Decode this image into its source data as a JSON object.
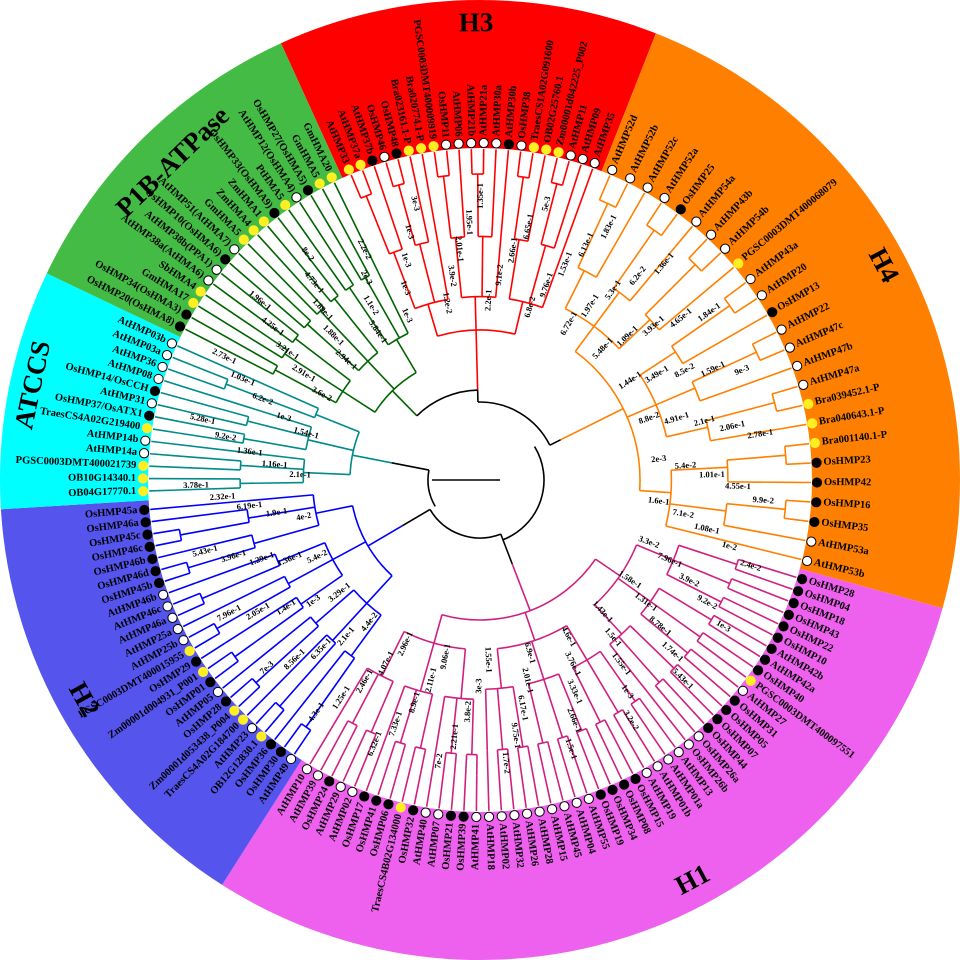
{
  "groups": [
    {
      "id": "H3",
      "label": "H3",
      "bg": "#ff0000",
      "line": "#ff0000",
      "start": -24.5,
      "end": 21.5,
      "labelAngle": -0.5
    },
    {
      "id": "H4",
      "label": "H4",
      "bg": "#ff8000",
      "line": "#ff8000",
      "start": 21.5,
      "end": 105.5,
      "labelAngle": 62
    },
    {
      "id": "H1",
      "label": "H1",
      "bg": "#ee60ee",
      "line": "#d0207f",
      "start": 105.5,
      "end": 212.5,
      "labelAngle": 152
    },
    {
      "id": "H2",
      "label": "H2",
      "bg": "#5555ee",
      "line": "#0000ff",
      "start": 212.5,
      "end": 266.5,
      "labelAngle": 241
    },
    {
      "id": "ATCCS",
      "label": "ATCCS",
      "bg": "#00ffff",
      "line": "#008b8b",
      "start": 266.5,
      "end": 295.5,
      "labelAngle": 282
    },
    {
      "id": "P1B",
      "label": "P1B-ATPase",
      "bg": "#44bb44",
      "line": "#006400",
      "start": 295.5,
      "end": 335.5,
      "labelAngle": 316
    }
  ],
  "leaves": [
    {
      "name": "AtHMP33",
      "marker": "yellow",
      "group": "H3"
    },
    {
      "name": "AtHMP37a",
      "marker": "yellow",
      "group": "H3"
    },
    {
      "name": "AtHMP37b",
      "marker": "black",
      "group": "H3"
    },
    {
      "name": "OsHMP46",
      "marker": "white",
      "group": "H3"
    },
    {
      "name": "OsHMP48",
      "marker": "black",
      "group": "H3"
    },
    {
      "name": "Bra023161.1-P",
      "marker": "yellow",
      "group": "H3"
    },
    {
      "name": "Bra020774.1-P",
      "marker": "yellow",
      "group": "H3"
    },
    {
      "name": "PGSC0003DMT400009919",
      "marker": "yellow",
      "group": "H3"
    },
    {
      "name": "OsHMP11",
      "marker": "white",
      "group": "H3"
    },
    {
      "name": "AtHMP06",
      "marker": "white",
      "group": "H3"
    },
    {
      "name": "AtHMP21b",
      "marker": "white",
      "group": "H3"
    },
    {
      "name": "AtHMP21a",
      "marker": "white",
      "group": "H3"
    },
    {
      "name": "AtHMP30a",
      "marker": "white",
      "group": "H3"
    },
    {
      "name": "AtHMP30b",
      "marker": "black",
      "group": "H3"
    },
    {
      "name": "OsHMP38",
      "marker": "white",
      "group": "H3"
    },
    {
      "name": "TraesCS1A02G091600",
      "marker": "yellow",
      "group": "H3"
    },
    {
      "name": "OB02G25760.1",
      "marker": "yellow",
      "group": "H3"
    },
    {
      "name": "Zm00001d042225_P002",
      "marker": "yellow",
      "group": "H3"
    },
    {
      "name": "AtHMP11",
      "marker": "white",
      "group": "H3"
    },
    {
      "name": "AtHMP09",
      "marker": "white",
      "group": "H3"
    },
    {
      "name": "AtHMP35",
      "marker": "white",
      "group": "H3"
    },
    {
      "name": "AtHMP52d",
      "marker": "white",
      "group": "H4"
    },
    {
      "name": "AtHMP52b",
      "marker": "white",
      "group": "H4"
    },
    {
      "name": "AtHMP52c",
      "marker": "white",
      "group": "H4"
    },
    {
      "name": "AtHMP52a",
      "marker": "white",
      "group": "H4"
    },
    {
      "name": "OsHMP25",
      "marker": "black",
      "group": "H4"
    },
    {
      "name": "AtHMP54a",
      "marker": "white",
      "group": "H4"
    },
    {
      "name": "AtHMP43b",
      "marker": "white",
      "group": "H4"
    },
    {
      "name": "AtHMP54b",
      "marker": "white",
      "group": "H4"
    },
    {
      "name": "PGSC0003DMT400068079",
      "marker": "yellow",
      "group": "H4"
    },
    {
      "name": "AtHMP43a",
      "marker": "white",
      "group": "H4"
    },
    {
      "name": "AtHMP20",
      "marker": "white",
      "group": "H4"
    },
    {
      "name": "OsHMP13",
      "marker": "black",
      "group": "H4"
    },
    {
      "name": "AtHMP22",
      "marker": "white",
      "group": "H4"
    },
    {
      "name": "AtHMP47c",
      "marker": "white",
      "group": "H4"
    },
    {
      "name": "AtHMP47b",
      "marker": "white",
      "group": "H4"
    },
    {
      "name": "AtHMP47a",
      "marker": "white",
      "group": "H4"
    },
    {
      "name": "Bra039452.1-P",
      "marker": "yellow",
      "group": "H4"
    },
    {
      "name": "Bra040643.1-P",
      "marker": "yellow",
      "group": "H4"
    },
    {
      "name": "Bra001140.1-P",
      "marker": "yellow",
      "group": "H4"
    },
    {
      "name": "OsHMP23",
      "marker": "black",
      "group": "H4"
    },
    {
      "name": "OsHMP42",
      "marker": "black",
      "group": "H4"
    },
    {
      "name": "OsHMP16",
      "marker": "black",
      "group": "H4"
    },
    {
      "name": "OsHMP35",
      "marker": "black",
      "group": "H4"
    },
    {
      "name": "AtHMP53a",
      "marker": "white",
      "group": "H4"
    },
    {
      "name": "AtHMP53b",
      "marker": "white",
      "group": "H4"
    },
    {
      "name": "OsHMP28",
      "marker": "black",
      "group": "H1"
    },
    {
      "name": "OsHMP04",
      "marker": "black",
      "group": "H1"
    },
    {
      "name": "OsHMP18",
      "marker": "black",
      "group": "H1"
    },
    {
      "name": "OsHMP43",
      "marker": "black",
      "group": "H1"
    },
    {
      "name": "OsHMP22",
      "marker": "black",
      "group": "H1"
    },
    {
      "name": "OsHMP10",
      "marker": "black",
      "group": "H1"
    },
    {
      "name": "AtHMP42b",
      "marker": "black",
      "group": "H1"
    },
    {
      "name": "AtHMP42a",
      "marker": "black",
      "group": "H1"
    },
    {
      "name": "OsHMP40",
      "marker": "black",
      "group": "H1"
    },
    {
      "name": "PGSC0003DMT400097551",
      "marker": "yellow",
      "group": "H1"
    },
    {
      "name": "AtHMP27",
      "marker": "white",
      "group": "H1"
    },
    {
      "name": "OsHMP31",
      "marker": "black",
      "group": "H1"
    },
    {
      "name": "OsHMP05",
      "marker": "black",
      "group": "H1"
    },
    {
      "name": "OsHMP07",
      "marker": "black",
      "group": "H1"
    },
    {
      "name": "OsHMP44",
      "marker": "black",
      "group": "H1"
    },
    {
      "name": "OsHMP26a",
      "marker": "white",
      "group": "H1"
    },
    {
      "name": "OsHMP26b",
      "marker": "white",
      "group": "H1"
    },
    {
      "name": "AtHMP13",
      "marker": "white",
      "group": "H1"
    },
    {
      "name": "AtHMP01a",
      "marker": "white",
      "group": "H1"
    },
    {
      "name": "AtHMP01b",
      "marker": "white",
      "group": "H1"
    },
    {
      "name": "AtHMP19",
      "marker": "white",
      "group": "H1"
    },
    {
      "name": "OsHMP15",
      "marker": "black",
      "group": "H1"
    },
    {
      "name": "OsHMP08",
      "marker": "black",
      "group": "H1"
    },
    {
      "name": "OsHMP34",
      "marker": "black",
      "group": "H1"
    },
    {
      "name": "OsHMP19",
      "marker": "black",
      "group": "H1"
    },
    {
      "name": "AtHMP55",
      "marker": "white",
      "group": "H1"
    },
    {
      "name": "AtHMP04",
      "marker": "white",
      "group": "H1"
    },
    {
      "name": "AtHMP45",
      "marker": "white",
      "group": "H1"
    },
    {
      "name": "AtHMP15",
      "marker": "white",
      "group": "H1"
    },
    {
      "name": "AtHMP28",
      "marker": "white",
      "group": "H1"
    },
    {
      "name": "AtHMP26",
      "marker": "white",
      "group": "H1"
    },
    {
      "name": "AtHMP32",
      "marker": "white",
      "group": "H1"
    },
    {
      "name": "AtHMP02",
      "marker": "white",
      "group": "H1"
    },
    {
      "name": "AtHMP18",
      "marker": "white",
      "group": "H1"
    },
    {
      "name": "AtHMP41",
      "marker": "white",
      "group": "H1"
    },
    {
      "name": "OsHMP39",
      "marker": "black",
      "group": "H1"
    },
    {
      "name": "OsHMP21",
      "marker": "black",
      "group": "H1"
    },
    {
      "name": "AtHMP07",
      "marker": "white",
      "group": "H1"
    },
    {
      "name": "AtHMP40",
      "marker": "white",
      "group": "H1"
    },
    {
      "name": "OsHMP32",
      "marker": "black",
      "group": "H1"
    },
    {
      "name": "TraesCS4B02G134000",
      "marker": "yellow",
      "group": "H1"
    },
    {
      "name": "OsHMP06",
      "marker": "black",
      "group": "H1"
    },
    {
      "name": "OsHMP41",
      "marker": "black",
      "group": "H1"
    },
    {
      "name": "OsHMP17",
      "marker": "black",
      "group": "H1"
    },
    {
      "name": "AtHMP02",
      "marker": "white",
      "group": "H1"
    },
    {
      "name": "AtHMP29",
      "marker": "white",
      "group": "H1"
    },
    {
      "name": "OsHMP24",
      "marker": "black",
      "group": "H1"
    },
    {
      "name": "AtHMP39",
      "marker": "white",
      "group": "H1"
    },
    {
      "name": "AtHMP10",
      "marker": "white",
      "group": "H1"
    },
    {
      "name": "AtHMP49",
      "marker": "white",
      "group": "H2"
    },
    {
      "name": "OsHMP30",
      "marker": "black",
      "group": "H2"
    },
    {
      "name": "OsHMP36",
      "marker": "black",
      "group": "H2"
    },
    {
      "name": "OB12G12830.1",
      "marker": "yellow",
      "group": "H2"
    },
    {
      "name": "AtHMP23",
      "marker": "white",
      "group": "H2"
    },
    {
      "name": "TraesCS4A02G184700",
      "marker": "yellow",
      "group": "H2"
    },
    {
      "name": "Zm00001d053438_P004",
      "marker": "yellow",
      "group": "H2"
    },
    {
      "name": "OsHMP28",
      "marker": "black",
      "group": "H2"
    },
    {
      "name": "AtHMP05",
      "marker": "white",
      "group": "H2"
    },
    {
      "name": "OsHMP01",
      "marker": "black",
      "group": "H2"
    },
    {
      "name": "Zm00001d004931_P001",
      "marker": "yellow",
      "group": "H2"
    },
    {
      "name": "OsHMP29",
      "marker": "black",
      "group": "H2"
    },
    {
      "name": "PGSC0003DMT400015955",
      "marker": "yellow",
      "group": "H2"
    },
    {
      "name": "AtHMP25b",
      "marker": "white",
      "group": "H2"
    },
    {
      "name": "AtHMP25a",
      "marker": "white",
      "group": "H2"
    },
    {
      "name": "AtHMP46a",
      "marker": "white",
      "group": "H2"
    },
    {
      "name": "AtHMP46c",
      "marker": "white",
      "group": "H2"
    },
    {
      "name": "AtHMP46b",
      "marker": "white",
      "group": "H2"
    },
    {
      "name": "OsHMP45b",
      "marker": "black",
      "group": "H2"
    },
    {
      "name": "OsHMP46d",
      "marker": "black",
      "group": "H2"
    },
    {
      "name": "OsHMP46b",
      "marker": "black",
      "group": "H2"
    },
    {
      "name": "OsHMP46c",
      "marker": "black",
      "group": "H2"
    },
    {
      "name": "OsHMP45c",
      "marker": "black",
      "group": "H2"
    },
    {
      "name": "OsHMP46a",
      "marker": "black",
      "group": "H2"
    },
    {
      "name": "OsHMP45a",
      "marker": "black",
      "group": "H2"
    },
    {
      "name": "OB04G17770.1",
      "marker": "yellow",
      "group": "ATCCS"
    },
    {
      "name": "OB10G14340.1",
      "marker": "yellow",
      "group": "ATCCS"
    },
    {
      "name": "PGSC0003DMT400021739",
      "marker": "yellow",
      "group": "ATCCS"
    },
    {
      "name": "AtHMP14a",
      "marker": "white",
      "group": "ATCCS"
    },
    {
      "name": "AtHMP14b",
      "marker": "white",
      "group": "ATCCS"
    },
    {
      "name": "TraesCS4A02G219400",
      "marker": "yellow",
      "group": "ATCCS"
    },
    {
      "name": "OsHMP37/OsATX1",
      "marker": "black",
      "group": "ATCCS"
    },
    {
      "name": "AtHMP31",
      "marker": "white",
      "group": "ATCCS"
    },
    {
      "name": "OsHMP14/OsCCH",
      "marker": "black",
      "group": "ATCCS"
    },
    {
      "name": "AtHMP08",
      "marker": "white",
      "group": "ATCCS"
    },
    {
      "name": "AtHMP36",
      "marker": "white",
      "group": "ATCCS"
    },
    {
      "name": "AtHMP03a",
      "marker": "white",
      "group": "ATCCS"
    },
    {
      "name": "AtHMP03b",
      "marker": "white",
      "group": "ATCCS"
    },
    {
      "name": "OsHMP20(OsHMA8)",
      "marker": "black",
      "group": "P1B"
    },
    {
      "name": "OsHMP34(OsHMA3)",
      "marker": "black",
      "group": "P1B"
    },
    {
      "name": "GmHMA17",
      "marker": "yellow",
      "group": "P1B"
    },
    {
      "name": "SbHMA4",
      "marker": "yellow",
      "group": "P1B"
    },
    {
      "name": "AtHMP38a(AtHMA6)",
      "marker": "white",
      "group": "P1B"
    },
    {
      "name": "AtHMP38b(PPA1)",
      "marker": "white",
      "group": "P1B"
    },
    {
      "name": "OsHMP10(OsHMA6)",
      "marker": "black",
      "group": "P1B"
    },
    {
      "name": "AtHMP51(AtHMA7)",
      "marker": "white",
      "group": "P1B"
    },
    {
      "name": "GmHMA5",
      "marker": "yellow",
      "group": "P1B"
    },
    {
      "name": "ZmHMA4",
      "marker": "yellow",
      "group": "P1B"
    },
    {
      "name": "ZmHMA1",
      "marker": "yellow",
      "group": "P1B"
    },
    {
      "name": "OsHMP33(OsHMA9)",
      "marker": "black",
      "group": "P1B"
    },
    {
      "name": "PtHMA5",
      "marker": "yellow",
      "group": "P1B"
    },
    {
      "name": "AtHMP12(OsHMA4)",
      "marker": "white",
      "group": "P1B"
    },
    {
      "name": "OsHMP27(OsHMA5)",
      "marker": "black",
      "group": "P1B"
    },
    {
      "name": "GmHMA5",
      "marker": "yellow",
      "group": "P1B"
    },
    {
      "name": "GmHMA20",
      "marker": "yellow",
      "group": "P1B"
    }
  ],
  "branch_labels": [
    {
      "text": "1e-3"
    },
    {
      "text": "1e-3"
    },
    {
      "text": "1e-3"
    },
    {
      "text": "1e-3"
    },
    {
      "text": "3e-3"
    },
    {
      "text": "1.2e-2"
    },
    {
      "text": "3.9e-2"
    },
    {
      "text": "2.01e-1"
    },
    {
      "text": "1.95e-1"
    },
    {
      "text": "1.35e-1"
    },
    {
      "text": "2.2e-1"
    },
    {
      "text": "9.1e-2"
    },
    {
      "text": "2.66e-1"
    },
    {
      "text": "6.65e-1"
    },
    {
      "text": "5e-3"
    },
    {
      "text": "6.8e-2"
    },
    {
      "text": "9.76e-1"
    },
    {
      "text": "1.53e-1"
    },
    {
      "text": "6.13e-1"
    },
    {
      "text": "1.83e-1"
    },
    {
      "text": "6.72e-1"
    },
    {
      "text": "1.97e-1"
    },
    {
      "text": "5.3e-1"
    },
    {
      "text": "6.2e-2"
    },
    {
      "text": "1.36e-1"
    },
    {
      "text": "5.48e-1"
    },
    {
      "text": "1.09e-1"
    },
    {
      "text": "3.93e-1"
    },
    {
      "text": "4.65e-1"
    },
    {
      "text": "1.84e-1"
    },
    {
      "text": "1.44e-1"
    },
    {
      "text": "3.49e-1"
    },
    {
      "text": "8.5e-2"
    },
    {
      "text": "1.59e-1"
    },
    {
      "text": "9e-3"
    },
    {
      "text": "8.8e-2"
    },
    {
      "text": "4.91e-1"
    },
    {
      "text": "2.1e-1"
    },
    {
      "text": "2.06e-1"
    },
    {
      "text": "2.78e-1"
    },
    {
      "text": "2e-3"
    },
    {
      "text": "5.4e-2"
    },
    {
      "text": "1.01e-1"
    },
    {
      "text": "4.55e-1"
    },
    {
      "text": "9.9e-2"
    },
    {
      "text": "1.6e-1"
    },
    {
      "text": "7.1e-2"
    },
    {
      "text": "1.08e-1"
    },
    {
      "text": "1e-2"
    },
    {
      "text": "2.4e-2"
    },
    {
      "text": "3.3e-2"
    },
    {
      "text": "7.96e-1"
    },
    {
      "text": "3.9e-2"
    },
    {
      "text": "9.2e-2"
    },
    {
      "text": "1e-3"
    },
    {
      "text": "1.58e-1"
    },
    {
      "text": "1.31e-1"
    },
    {
      "text": "8.78e-1"
    },
    {
      "text": "1.74e-1"
    },
    {
      "text": "5.43e-1"
    },
    {
      "text": "1.43e-1"
    },
    {
      "text": "1.5e-1"
    },
    {
      "text": "1.55e-1"
    },
    {
      "text": "1e-3"
    },
    {
      "text": "3.2e-2"
    },
    {
      "text": "4.6e-1"
    },
    {
      "text": "3.76e-1"
    },
    {
      "text": "3.33e-1"
    },
    {
      "text": "2.66e-1"
    },
    {
      "text": "1.5e-1"
    },
    {
      "text": "6.9e-1"
    },
    {
      "text": "2.01e-1"
    },
    {
      "text": "6.17e-1"
    },
    {
      "text": "9.75e-1"
    },
    {
      "text": "1.7e-2"
    },
    {
      "text": "1.55e-1"
    },
    {
      "text": "3e-3"
    },
    {
      "text": "3.8e-2"
    },
    {
      "text": "2.21e-1"
    },
    {
      "text": "7e-2"
    },
    {
      "text": "9.06e-1"
    },
    {
      "text": "2.11e-1"
    },
    {
      "text": "8.9e-1"
    },
    {
      "text": "7.33e-1"
    },
    {
      "text": "6.32e-1"
    },
    {
      "text": "2.96e-1"
    },
    {
      "text": "4.07e-1"
    },
    {
      "text": "2.46e-1"
    },
    {
      "text": "1.25e-1"
    },
    {
      "text": "4.3e-1"
    },
    {
      "text": "4.4e-2"
    },
    {
      "text": "2.1e-1"
    },
    {
      "text": "6.35e-1"
    },
    {
      "text": "8.56e-1"
    },
    {
      "text": "7e-3"
    },
    {
      "text": "3.29e-1"
    },
    {
      "text": "1e-3"
    },
    {
      "text": "1.4e-1"
    },
    {
      "text": "2.05e-1"
    },
    {
      "text": "7.96e-1"
    },
    {
      "text": "5.4e-2"
    },
    {
      "text": "1.36e-1"
    },
    {
      "text": "1.29e-1"
    },
    {
      "text": "3.96e-1"
    },
    {
      "text": "5.43e-1"
    },
    {
      "text": "4e-2"
    },
    {
      "text": "1.9e-1"
    },
    {
      "text": "6.19e-1"
    },
    {
      "text": "2.32e-1"
    },
    {
      "text": "3.78e-1"
    },
    {
      "text": "2.1e-1"
    },
    {
      "text": "1.16e-1"
    },
    {
      "text": "1.36e-1"
    },
    {
      "text": "9.2e-2"
    },
    {
      "text": "5.28e-1"
    },
    {
      "text": "1.54e-1"
    },
    {
      "text": "1e-3"
    },
    {
      "text": "6.2e-2"
    },
    {
      "text": "1.03e-1"
    },
    {
      "text": "2.73e-1"
    },
    {
      "text": "3.6e-2"
    },
    {
      "text": "2.91e-1"
    },
    {
      "text": "3.21e-1"
    },
    {
      "text": "4.25e-1"
    },
    {
      "text": "1.96e-1"
    },
    {
      "text": "2.94e-1"
    },
    {
      "text": "1.88e-1"
    },
    {
      "text": "1.89e-1"
    },
    {
      "text": "4.73e-1"
    },
    {
      "text": "8e-2"
    },
    {
      "text": "5.84e-1"
    },
    {
      "text": "1.1e-2"
    },
    {
      "text": "2e-3"
    },
    {
      "text": "2.2e-2"
    }
  ]
}
